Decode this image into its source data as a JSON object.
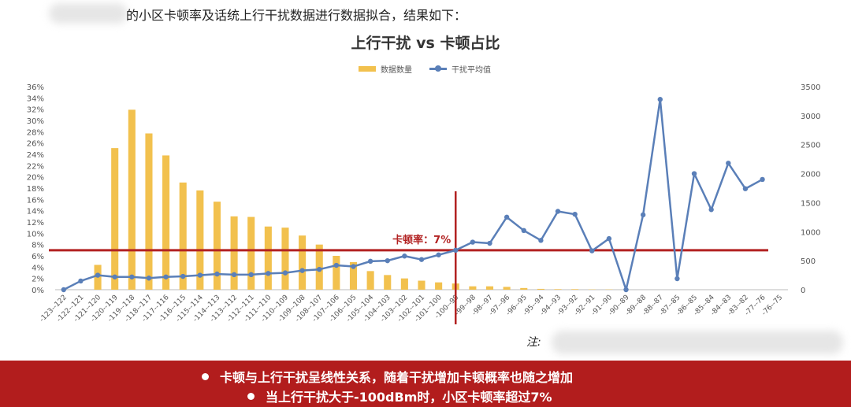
{
  "intro_text": "的小区卡顿率及话统上行干扰数据进行数据拟合，结果如下：",
  "note_label": "注:",
  "conclusions": [
    "卡顿与上行干扰呈线性关系，随着干扰增加卡顿概率也随之增加",
    "当上行干扰大于-100dBm时，小区卡顿率超过7%"
  ],
  "colors": {
    "bar": "#f2c14e",
    "line": "#5a7fb8",
    "threshold": "#b22222",
    "banner": "#b21d1d"
  },
  "chart_data": {
    "type": "bar+line",
    "title": "上行干扰 vs 卡顿占比",
    "legend_position": "top-center",
    "grid": false,
    "categories": [
      "-123--122",
      "-122--121",
      "-121--120",
      "-120--119",
      "-119--118",
      "-118--117",
      "-117--116",
      "-116--115",
      "-115--114",
      "-114--113",
      "-113--112",
      "-112--111",
      "-111--110",
      "-110--109",
      "-109--108",
      "-108--107",
      "-107--106",
      "-106--105",
      "-105--104",
      "-104--103",
      "-103--102",
      "-102--101",
      "-101--100",
      "-100--99",
      "-99--98",
      "-98--97",
      "-97--96",
      "-96--95",
      "-95--94",
      "-94--93",
      "-93--92",
      "-92--91",
      "-91--90",
      "-90--89",
      "-89--88",
      "-88--87",
      "-87--85",
      "-86--85",
      "-85--84",
      "-84--83",
      "-83--82",
      "-77--76",
      "-76--75"
    ],
    "y_left": {
      "ticks": [
        "0%",
        "2%",
        "4%",
        "6%",
        "8%",
        "10%",
        "12%",
        "14%",
        "16%",
        "18%",
        "20%",
        "22%",
        "24%",
        "26%",
        "28%",
        "30%",
        "32%",
        "34%",
        "36%"
      ],
      "range": [
        0,
        36
      ]
    },
    "y_right": {
      "ticks": [
        "0",
        "500",
        "1000",
        "1500",
        "2000",
        "2500",
        "3000",
        "3500"
      ],
      "range": [
        0,
        3500
      ]
    },
    "series": [
      {
        "name": "数据数量",
        "type": "bar",
        "axis": "left",
        "values": [
          0,
          0,
          4.4,
          25.1,
          31.9,
          27.7,
          23.8,
          19,
          17.6,
          15.6,
          13,
          12.9,
          11.2,
          11,
          9.6,
          8,
          6,
          4.9,
          3.3,
          2.6,
          2,
          1.6,
          1.3,
          1.1,
          0.6,
          0.6,
          0.5,
          0.3,
          0.15,
          0.1,
          0.1,
          0.05,
          0.05,
          0,
          0,
          0,
          0,
          0,
          0,
          0,
          0,
          0,
          0
        ]
      },
      {
        "name": "干扰平均值",
        "type": "line",
        "axis": "right",
        "values": [
          0,
          150,
          250,
          220,
          220,
          200,
          220,
          230,
          250,
          270,
          260,
          260,
          280,
          290,
          330,
          350,
          420,
          400,
          490,
          500,
          580,
          520,
          600,
          680,
          820,
          800,
          1250,
          1020,
          850,
          1350,
          1300,
          670,
          880,
          0,
          1290,
          3280,
          190,
          2000,
          1380,
          2180,
          1740,
          1900,
          null
        ]
      }
    ],
    "threshold": {
      "label": "卡顿率：7%",
      "value": 7,
      "x_category": "-100--99"
    }
  }
}
